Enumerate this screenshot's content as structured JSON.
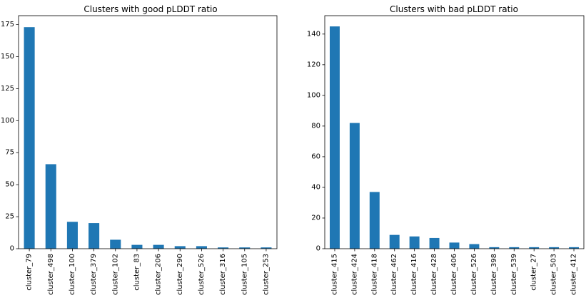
{
  "chart_data": [
    {
      "type": "bar",
      "title": "Clusters with good pLDDT ratio",
      "xlabel": "",
      "ylabel": "",
      "categories": [
        "cluster_79",
        "cluster_498",
        "cluster_100",
        "cluster_379",
        "cluster_102",
        "cluster_83",
        "cluster_206",
        "cluster_290",
        "cluster_526",
        "cluster_316",
        "cluster_105",
        "cluster_253"
      ],
      "values": [
        173,
        66,
        21,
        20,
        7,
        3,
        3,
        2,
        2,
        1,
        1,
        1
      ],
      "ylim": [
        0,
        182
      ],
      "yticks": [
        0,
        25,
        50,
        75,
        100,
        125,
        150,
        175
      ],
      "bar_color": "#1f77b4",
      "grid": false,
      "legend": "none"
    },
    {
      "type": "bar",
      "title": "Clusters with bad pLDDT ratio",
      "xlabel": "",
      "ylabel": "",
      "categories": [
        "cluster_415",
        "cluster_424",
        "cluster_418",
        "cluster_462",
        "cluster_416",
        "cluster_428",
        "cluster_406",
        "cluster_526",
        "cluster_398",
        "cluster_539",
        "cluster_27",
        "cluster_503",
        "cluster_412"
      ],
      "values": [
        145,
        82,
        37,
        9,
        8,
        7,
        4,
        3,
        1,
        1,
        1,
        1,
        1
      ],
      "ylim": [
        0,
        152
      ],
      "yticks": [
        0,
        20,
        40,
        60,
        80,
        100,
        120,
        140
      ],
      "bar_color": "#1f77b4",
      "grid": false,
      "legend": "none"
    }
  ]
}
